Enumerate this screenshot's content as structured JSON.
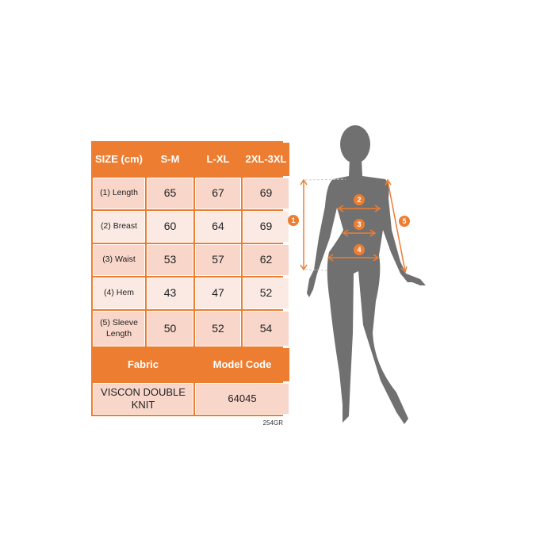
{
  "table": {
    "header": [
      "SIZE (cm)",
      "S-M",
      "L-XL",
      "2XL-3XL"
    ],
    "rows": [
      {
        "label": "(1) Length",
        "values": [
          "65",
          "67",
          "69"
        ]
      },
      {
        "label": "(2) Breast",
        "values": [
          "60",
          "64",
          "69"
        ]
      },
      {
        "label": "(3) Waist",
        "values": [
          "53",
          "57",
          "62"
        ]
      },
      {
        "label": "(4) Hem",
        "values": [
          "43",
          "47",
          "52"
        ]
      },
      {
        "label": "(5) Sleeve Length",
        "values": [
          "50",
          "52",
          "54"
        ]
      }
    ],
    "footer_header": [
      "Fabric",
      "Model Code"
    ],
    "footer_values": [
      "VISCON DOUBLE KNIT",
      "64045"
    ]
  },
  "product_code": "254GR",
  "figure": {
    "markers": [
      "1",
      "2",
      "3",
      "4",
      "5"
    ]
  },
  "colors": {
    "accent": "#ed7d31",
    "row_dark": "#f8d6ca",
    "row_light": "#fbeae4",
    "silhouette": "#707070"
  }
}
